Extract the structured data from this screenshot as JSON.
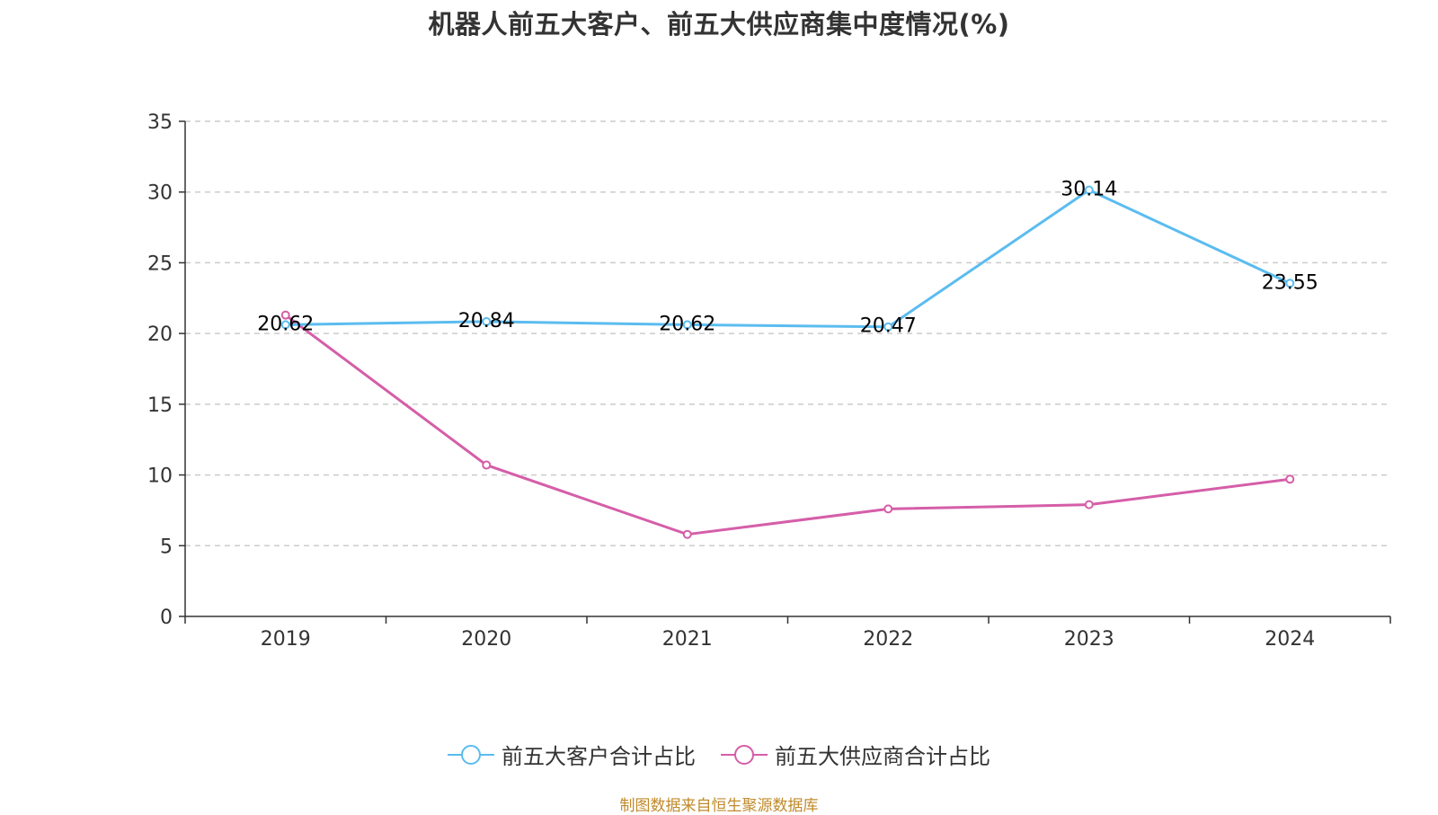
{
  "title": "机器人前五大客户、前五大供应商集中度情况(%)",
  "source": "制图数据来自恒生聚源数据库",
  "colors": {
    "customers": "#5bbcf0",
    "suppliers": "#d55ea8",
    "grid": "#cccccc",
    "axis": "#333333"
  },
  "chart_data": {
    "type": "line",
    "title": "机器人前五大客户、前五大供应商集中度情况(%)",
    "xlabel": "",
    "ylabel": "",
    "categories": [
      "2019",
      "2020",
      "2021",
      "2022",
      "2023",
      "2024"
    ],
    "ylim": [
      0,
      35
    ],
    "yticks": [
      0,
      5,
      10,
      15,
      20,
      25,
      30,
      35
    ],
    "grid": true,
    "legend_position": "bottom",
    "series": [
      {
        "name": "前五大客户合计占比",
        "values": [
          20.62,
          20.84,
          20.62,
          20.47,
          30.14,
          23.55
        ],
        "labels": [
          "20.62",
          "20.84",
          "20.62",
          "20.47",
          "30.14",
          "23.55"
        ],
        "color": "#5bbcf0"
      },
      {
        "name": "前五大供应商合计占比",
        "values": [
          21.3,
          10.7,
          5.8,
          7.6,
          7.9,
          9.7
        ],
        "labels": [],
        "color": "#d55ea8"
      }
    ]
  }
}
